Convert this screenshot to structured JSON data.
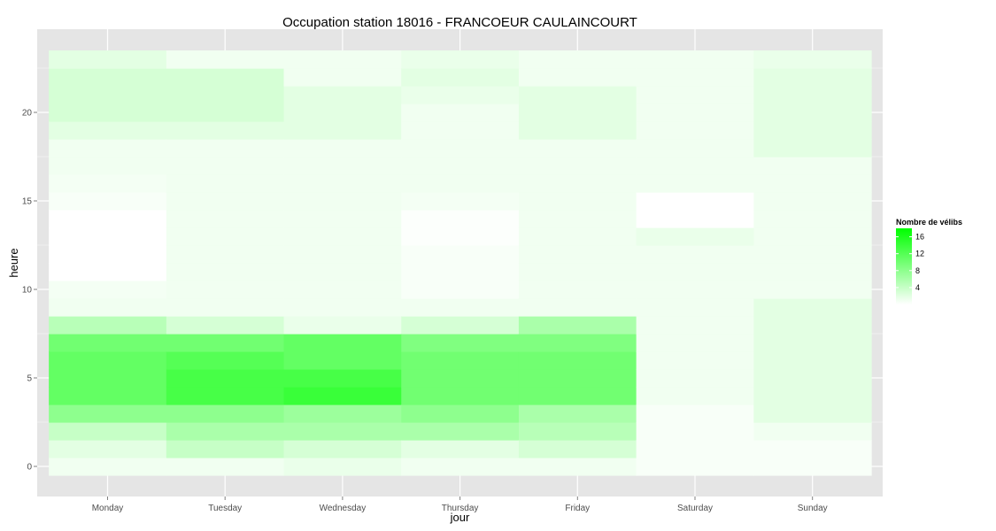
{
  "chart_data": {
    "type": "heatmap",
    "title": "Occupation station 18016 - FRANCOEUR CAULAINCOURT",
    "xlabel": "jour",
    "ylabel": "heure",
    "x_categories": [
      "Monday",
      "Tuesday",
      "Wednesday",
      "Thursday",
      "Friday",
      "Saturday",
      "Sunday"
    ],
    "y_ticks": [
      0,
      5,
      10,
      15,
      20
    ],
    "ylim": [
      -0.5,
      23.5
    ],
    "hours": [
      0,
      1,
      2,
      3,
      4,
      5,
      6,
      7,
      8,
      9,
      10,
      11,
      12,
      13,
      14,
      15,
      16,
      17,
      18,
      19,
      20,
      21,
      22,
      23
    ],
    "grid": true,
    "legend": {
      "title": "Nombre de vélibs",
      "ticks": [
        4,
        8,
        12,
        16
      ],
      "range": [
        0,
        18
      ],
      "low_color": "#ffffff",
      "high_color": "#00ff00",
      "position": "right"
    },
    "values": [
      [
        1,
        2,
        4,
        8,
        11,
        11,
        11,
        10,
        5,
        1,
        0.8,
        0,
        0,
        0,
        0,
        0.5,
        0.8,
        1,
        1,
        2,
        3,
        3,
        3,
        2
      ],
      [
        1,
        4,
        6,
        8,
        13,
        13,
        12,
        10,
        3,
        1,
        1,
        1,
        1,
        1,
        1,
        1,
        1,
        1,
        1,
        2,
        3,
        3,
        3,
        1
      ],
      [
        1.5,
        3,
        6,
        7,
        14,
        13,
        11,
        11,
        1.5,
        1,
        1,
        1,
        1,
        1,
        1,
        1,
        1,
        1,
        1,
        2,
        2,
        2,
        1,
        1
      ],
      [
        1,
        2,
        6,
        8,
        10,
        10,
        10,
        9,
        3,
        1,
        0.5,
        0.5,
        0.5,
        0.2,
        0.2,
        0.8,
        1,
        1,
        1,
        1,
        1,
        1.5,
        2,
        1.5
      ],
      [
        1,
        3,
        5,
        6,
        10,
        10,
        10,
        9,
        6,
        1,
        1,
        1,
        1,
        1,
        1,
        1,
        1,
        1,
        1,
        2,
        2,
        2,
        1,
        1
      ],
      [
        0.5,
        0.5,
        0.5,
        0.5,
        1,
        1,
        1,
        1,
        1,
        1,
        1,
        1,
        1,
        1.5,
        0,
        0,
        1,
        1,
        1,
        1,
        1,
        1,
        1,
        1
      ],
      [
        0.5,
        0.5,
        1,
        2,
        2,
        2,
        2,
        2,
        2,
        2,
        1,
        1,
        1,
        1,
        1,
        1,
        1,
        1,
        2,
        2,
        2,
        2,
        2,
        1.5
      ]
    ]
  }
}
